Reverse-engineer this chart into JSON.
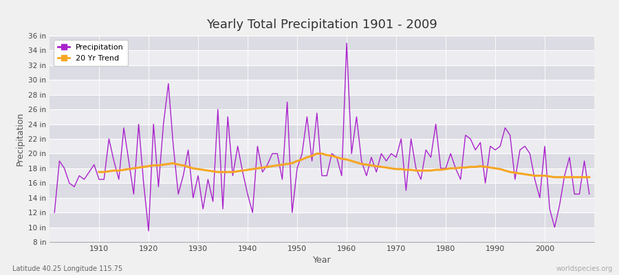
{
  "title": "Yearly Total Precipitation 1901 - 2009",
  "xlabel": "Year",
  "ylabel": "Precipitation",
  "subtitle": "Latitude 40.25 Longitude 115.75",
  "watermark": "worldspecies.org",
  "ylim": [
    8,
    36
  ],
  "ytick_values": [
    8,
    10,
    12,
    14,
    16,
    18,
    20,
    22,
    24,
    26,
    28,
    30,
    32,
    34,
    36
  ],
  "ytick_labels": [
    "8 in",
    "10 in",
    "12 in",
    "14 in",
    "16 in",
    "18 in",
    "20 in",
    "22 in",
    "24 in",
    "26 in",
    "28 in",
    "30 in",
    "32 in",
    "34 in",
    "36 in"
  ],
  "precip_color": "#aa22cc",
  "trend_color": "#f5a623",
  "bg_color": "#dcdce4",
  "plot_bg": "#dcdce4",
  "fig_bg": "#f0f0f0",
  "legend_bg": "#ffffff",
  "years": [
    1901,
    1902,
    1903,
    1904,
    1905,
    1906,
    1907,
    1908,
    1909,
    1910,
    1911,
    1912,
    1913,
    1914,
    1915,
    1916,
    1917,
    1918,
    1919,
    1920,
    1921,
    1922,
    1923,
    1924,
    1925,
    1926,
    1927,
    1928,
    1929,
    1930,
    1931,
    1932,
    1933,
    1934,
    1935,
    1936,
    1937,
    1938,
    1939,
    1940,
    1941,
    1942,
    1943,
    1944,
    1945,
    1946,
    1947,
    1948,
    1949,
    1950,
    1951,
    1952,
    1953,
    1954,
    1955,
    1956,
    1957,
    1958,
    1959,
    1960,
    1961,
    1962,
    1963,
    1964,
    1965,
    1966,
    1967,
    1968,
    1969,
    1970,
    1971,
    1972,
    1973,
    1974,
    1975,
    1976,
    1977,
    1978,
    1979,
    1980,
    1981,
    1982,
    1983,
    1984,
    1985,
    1986,
    1987,
    1988,
    1989,
    1990,
    1991,
    1992,
    1993,
    1994,
    1995,
    1996,
    1997,
    1998,
    1999,
    2000,
    2001,
    2002,
    2003,
    2004,
    2005,
    2006,
    2007,
    2008,
    2009
  ],
  "precip": [
    12.0,
    19.0,
    18.0,
    16.0,
    15.5,
    17.0,
    16.5,
    17.5,
    18.5,
    16.5,
    16.5,
    22.0,
    19.0,
    16.5,
    23.5,
    19.0,
    14.5,
    24.0,
    16.0,
    9.5,
    24.0,
    15.5,
    24.0,
    29.5,
    21.0,
    14.5,
    17.0,
    20.5,
    14.0,
    17.0,
    12.5,
    16.5,
    13.5,
    26.0,
    12.5,
    25.0,
    17.0,
    21.0,
    17.5,
    14.5,
    12.0,
    21.0,
    17.5,
    18.5,
    20.0,
    20.0,
    16.5,
    27.0,
    12.0,
    18.0,
    20.0,
    25.0,
    19.0,
    25.5,
    17.0,
    17.0,
    20.0,
    19.5,
    17.0,
    35.0,
    20.0,
    25.0,
    19.0,
    17.0,
    19.5,
    17.5,
    20.0,
    19.0,
    20.0,
    19.5,
    22.0,
    15.0,
    22.0,
    18.0,
    16.5,
    20.5,
    19.5,
    24.0,
    18.0,
    18.0,
    20.0,
    18.0,
    16.5,
    22.5,
    22.0,
    20.5,
    21.5,
    16.0,
    21.0,
    20.5,
    21.0,
    23.5,
    22.5,
    16.5,
    20.5,
    21.0,
    20.0,
    16.5,
    14.0,
    21.0,
    12.5,
    10.0,
    13.0,
    17.0,
    19.5,
    14.5,
    14.5,
    19.0,
    14.5
  ],
  "trend": [
    null,
    null,
    null,
    null,
    null,
    null,
    null,
    null,
    null,
    17.5,
    17.5,
    17.6,
    17.7,
    17.7,
    17.8,
    17.9,
    18.0,
    18.1,
    18.2,
    18.3,
    18.4,
    18.4,
    18.5,
    18.6,
    18.7,
    18.5,
    18.4,
    18.2,
    18.0,
    17.9,
    17.8,
    17.7,
    17.6,
    17.5,
    17.5,
    17.5,
    17.5,
    17.6,
    17.7,
    17.8,
    17.9,
    18.0,
    18.1,
    18.2,
    18.3,
    18.4,
    18.5,
    18.6,
    18.7,
    19.0,
    19.2,
    19.5,
    19.7,
    20.0,
    20.0,
    19.8,
    19.7,
    19.5,
    19.3,
    19.2,
    19.0,
    18.8,
    18.6,
    18.5,
    18.4,
    18.3,
    18.2,
    18.1,
    18.0,
    17.9,
    17.9,
    17.8,
    17.8,
    17.7,
    17.7,
    17.7,
    17.7,
    17.8,
    17.8,
    17.9,
    18.0,
    18.0,
    18.1,
    18.1,
    18.2,
    18.2,
    18.3,
    18.2,
    18.1,
    18.0,
    17.9,
    17.7,
    17.5,
    17.4,
    17.3,
    17.2,
    17.1,
    17.0,
    17.0,
    17.0,
    16.9,
    16.8,
    16.8,
    16.8,
    16.8,
    16.8,
    16.8,
    16.8,
    16.8
  ],
  "xlim": [
    1900,
    2010
  ],
  "xticks": [
    1910,
    1920,
    1930,
    1940,
    1950,
    1960,
    1970,
    1980,
    1990,
    2000
  ]
}
